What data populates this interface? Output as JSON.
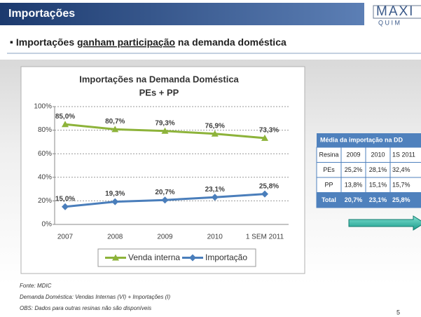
{
  "header": {
    "title": "Importações",
    "logo_top": "MAXI",
    "logo_bottom": "Q U I M"
  },
  "bullet": {
    "before": "Importações ",
    "underlined": "ganham participação",
    "after": " na demanda doméstica"
  },
  "chart_data": {
    "type": "line",
    "title": "Importações na Demanda Doméstica",
    "subtitle": "PEs + PP",
    "categories": [
      "2007",
      "2008",
      "2009",
      "2010",
      "1 SEM 2011"
    ],
    "series": [
      {
        "name": "Venda interna",
        "color": "#8db33a",
        "marker": "triangle",
        "values": [
          85.0,
          80.7,
          79.3,
          76.9,
          73.3
        ],
        "value_labels": [
          "85,0%",
          "80,7%",
          "79,3%",
          "76,9%",
          "73,3%"
        ]
      },
      {
        "name": "Importação",
        "color": "#4a7ebb",
        "marker": "diamond",
        "values": [
          15.0,
          19.3,
          20.7,
          23.1,
          25.8
        ],
        "value_labels": [
          "15,0%",
          "19,3%",
          "20,7%",
          "23,1%",
          "25,8%"
        ]
      }
    ],
    "ylim": [
      0,
      100
    ],
    "yticks": [
      {
        "value": 0,
        "label": "0%"
      },
      {
        "value": 20,
        "label": "20%"
      },
      {
        "value": 40,
        "label": "40%"
      },
      {
        "value": 60,
        "label": "60%"
      },
      {
        "value": 80,
        "label": "80%"
      },
      {
        "value": 100,
        "label": "100%"
      }
    ],
    "grid": true,
    "legend": "bottom"
  },
  "table": {
    "title": "Média da importação na DD",
    "rows": [
      [
        "Resina",
        "2009",
        "2010",
        "1S 2011"
      ],
      [
        "PEs",
        "25,2%",
        "28,1%",
        "32,4%"
      ],
      [
        "PP",
        "13,8%",
        "15,1%",
        "15,7%"
      ],
      [
        "Total",
        "20,7%",
        "23,1%",
        "25,8%"
      ]
    ]
  },
  "footer": {
    "notes": [
      "Fonte: MDIC",
      "Demanda Doméstica: Vendas Internas  (VI) + Importações (I)",
      "OBS: Dados para outras resinas não são disponíveis"
    ],
    "page": "5"
  }
}
